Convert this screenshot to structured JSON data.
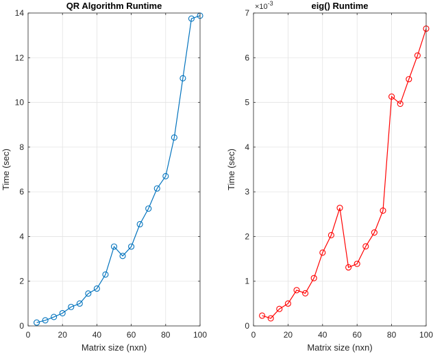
{
  "chart_data": [
    {
      "type": "line",
      "title": "QR Algorithm Runtime",
      "xlabel": "Matrix size (nxn)",
      "ylabel": "Time (sec)",
      "xlim": [
        0,
        100
      ],
      "ylim": [
        0,
        14
      ],
      "xticks": [
        "0",
        "20",
        "40",
        "60",
        "80",
        "100"
      ],
      "yticks": [
        "0",
        "2",
        "4",
        "6",
        "8",
        "10",
        "12",
        "14"
      ],
      "grid": true,
      "marker": "circle",
      "color": "#0072BD",
      "x": [
        5,
        10,
        15,
        20,
        25,
        30,
        35,
        40,
        45,
        50,
        55,
        60,
        65,
        70,
        75,
        80,
        85,
        90,
        95,
        100
      ],
      "y": [
        0.15,
        0.25,
        0.4,
        0.57,
        0.85,
        1.0,
        1.45,
        1.67,
        2.3,
        3.55,
        3.13,
        3.55,
        4.55,
        5.25,
        6.15,
        6.7,
        8.43,
        11.08,
        13.75,
        13.88
      ]
    },
    {
      "type": "line",
      "title": "eig() Runtime",
      "xlabel": "Matrix size (nxn)",
      "ylabel": "Time (sec)",
      "exponent_label": "×10",
      "exponent_power": "-3",
      "xlim": [
        0,
        100
      ],
      "ylim": [
        0,
        7
      ],
      "xticks": [
        "0",
        "20",
        "40",
        "60",
        "80",
        "100"
      ],
      "yticks": [
        "0",
        "1",
        "2",
        "3",
        "4",
        "5",
        "6",
        "7"
      ],
      "grid": true,
      "marker": "circle",
      "color": "#FF0000",
      "x": [
        5,
        10,
        15,
        20,
        25,
        30,
        35,
        40,
        45,
        50,
        55,
        60,
        65,
        70,
        75,
        80,
        85,
        90,
        95,
        100
      ],
      "y": [
        0.23,
        0.17,
        0.38,
        0.5,
        0.8,
        0.73,
        1.07,
        1.64,
        2.03,
        2.64,
        1.31,
        1.39,
        1.78,
        2.09,
        2.58,
        5.13,
        4.97,
        5.52,
        6.05,
        6.65
      ]
    }
  ]
}
